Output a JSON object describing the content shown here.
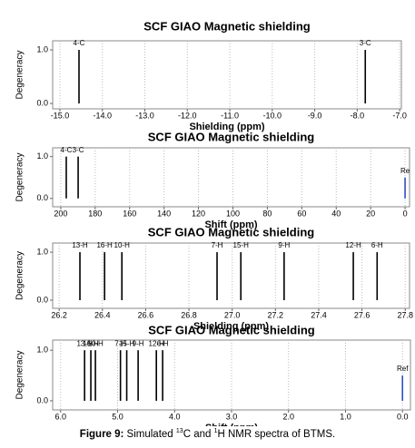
{
  "chart_data": [
    {
      "type": "stick",
      "title": "SCF GIAO Magnetic shielding",
      "xlabel": "Shielding (ppm)",
      "ylabel": "Degeneracy",
      "x": [
        -14.55,
        -7.81
      ],
      "values": [
        1,
        1
      ],
      "peak_labels": [
        "4-C",
        "3-C"
      ],
      "colors": [
        "#000000",
        "#000000"
      ],
      "xlim": [
        -15.17,
        -6.96
      ],
      "ylim": [
        -0.1,
        1.17
      ],
      "xticks": [
        {
          "value": -15,
          "label": "-15.0"
        },
        {
          "value": -14,
          "label": "-14.0"
        },
        {
          "value": -13,
          "label": "-13.0"
        },
        {
          "value": -12,
          "label": "-12.0"
        },
        {
          "value": -11,
          "label": "-11.0"
        },
        {
          "value": -10,
          "label": "-10.0"
        },
        {
          "value": -9,
          "label": "-9.0"
        },
        {
          "value": -8,
          "label": "-8.0"
        },
        {
          "value": -7,
          "label": "-7.0"
        }
      ],
      "yticks": [
        {
          "value": 0,
          "label": "0.0"
        },
        {
          "value": 1,
          "label": "1.0"
        }
      ],
      "grid": true
    },
    {
      "type": "stick",
      "title": "SCF GIAO Magnetic shielding",
      "xlabel": "Shift (ppm)",
      "ylabel": "Degeneracy",
      "x": [
        196.8,
        189.9,
        0
      ],
      "values": [
        1,
        1,
        0.5
      ],
      "peak_labels": [
        "4-C",
        "3-C",
        "Re"
      ],
      "colors": [
        "#000000",
        "#000000",
        "#2e4fc4"
      ],
      "xlim": [
        204.7,
        -2.6
      ],
      "ylim": [
        -0.2,
        1.21
      ],
      "xticks": [
        200,
        180,
        160,
        140,
        120,
        100,
        80,
        60,
        40,
        20,
        0
      ],
      "yticks": [
        {
          "value": 0,
          "label": "0.0"
        },
        {
          "value": 1,
          "label": "1.0"
        }
      ],
      "grid": true
    },
    {
      "type": "stick",
      "title": "SCF GIAO Magnetic shielding",
      "xlabel": "Shielding (ppm)",
      "ylabel": "Degeneracy",
      "x": [
        26.296,
        26.41,
        26.49,
        26.93,
        27.04,
        27.24,
        27.56,
        27.67
      ],
      "values": [
        1,
        1,
        1,
        1,
        1,
        1,
        1,
        1
      ],
      "peak_labels": [
        "13-H",
        "16-H",
        "10-H",
        "7-H",
        "15-H",
        "9-H",
        "12-H",
        "6-H"
      ],
      "colors": [
        "#000000",
        "#000000",
        "#000000",
        "#000000",
        "#000000",
        "#000000",
        "#000000",
        "#000000"
      ],
      "xlim": [
        26.17,
        27.82
      ],
      "ylim": [
        -0.17,
        1.19
      ],
      "xticks": [
        26.2,
        26.4,
        26.6,
        26.8,
        {
          "value": 27,
          "label": "27.0"
        },
        27.2,
        27.4,
        27.6,
        27.8
      ],
      "yticks": [
        {
          "value": 0,
          "label": "0.0"
        },
        {
          "value": 1,
          "label": "1.0"
        }
      ],
      "grid": true
    },
    {
      "type": "stick",
      "title": "SCF GIAO Magnetic shielding",
      "xlabel": "Shift (ppm)",
      "ylabel": "Degeneracy",
      "x": [
        5.58,
        5.47,
        5.39,
        4.95,
        4.84,
        4.64,
        4.32,
        4.21,
        0
      ],
      "values": [
        1,
        1,
        1,
        1,
        1,
        1,
        1,
        1,
        0.5
      ],
      "peak_labels": [
        "13-H",
        "16-H",
        "10-H",
        "7-H",
        "15-H",
        "9-H",
        "12-H",
        "6-H",
        "Ref"
      ],
      "colors": [
        "#000000",
        "#000000",
        "#000000",
        "#000000",
        "#000000",
        "#000000",
        "#000000",
        "#000000",
        "#2e4fc4"
      ],
      "xlim": [
        6.14,
        -0.14
      ],
      "ylim": [
        -0.18,
        1.2
      ],
      "xticks": [
        {
          "value": 6,
          "label": "6.0"
        },
        {
          "value": 5,
          "label": "5.0"
        },
        {
          "value": 4,
          "label": "4.0"
        },
        {
          "value": 3,
          "label": "3.0"
        },
        {
          "value": 2,
          "label": "2.0"
        },
        {
          "value": 1,
          "label": "1.0"
        },
        {
          "value": 0,
          "label": "0.0"
        }
      ],
      "yticks": [
        {
          "value": 0,
          "label": "0.0"
        },
        {
          "value": 1,
          "label": "1.0"
        }
      ],
      "grid": true
    }
  ],
  "caption": {
    "label": "Figure 9:",
    "text_1": " Simulated ",
    "sup_1": "13",
    "text_2": "C and ",
    "sup_2": "1",
    "text_3": "H NMR spectra of BTMS."
  }
}
